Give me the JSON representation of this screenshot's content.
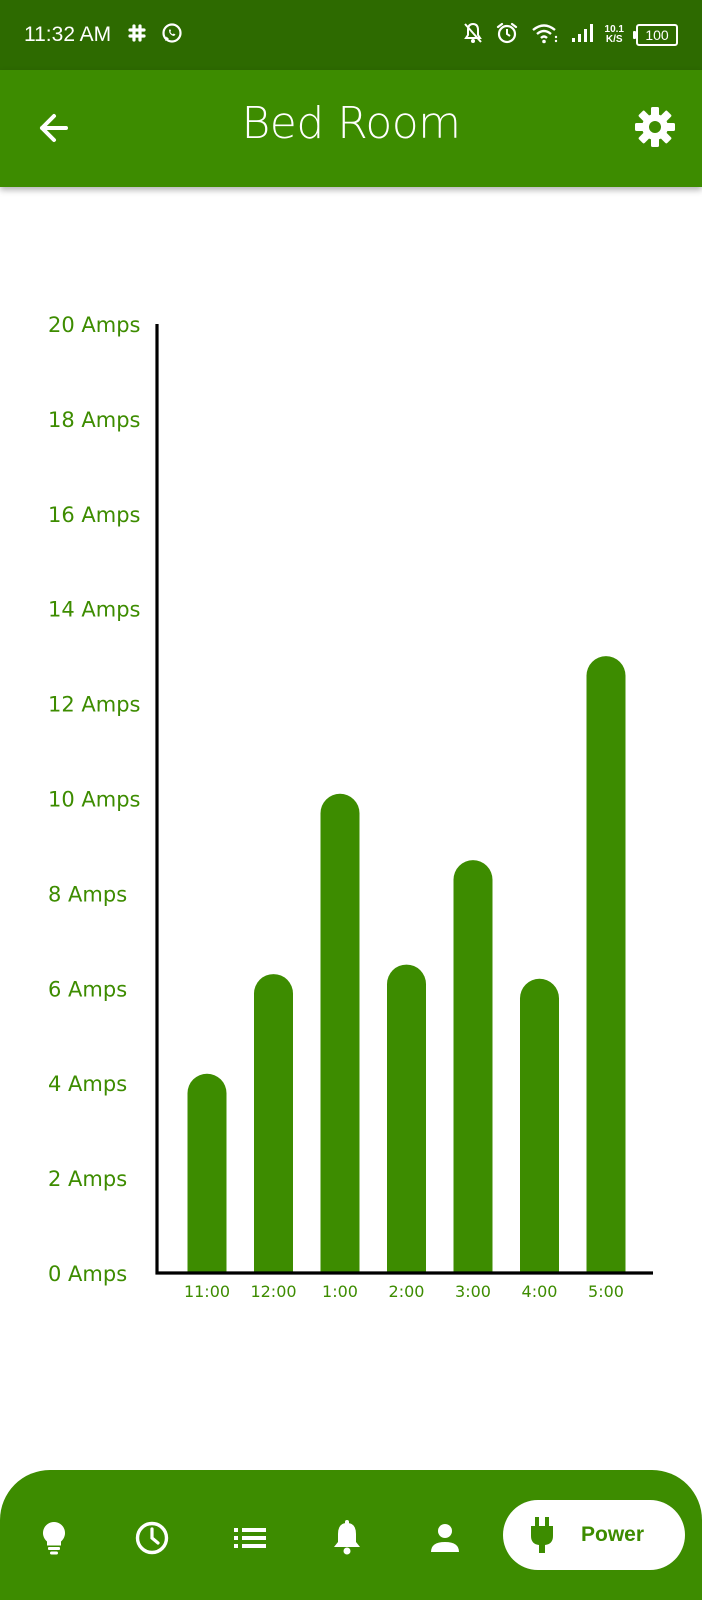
{
  "status_bar": {
    "time": "11:32 AM",
    "left_icons": [
      "slack-icon",
      "whatsapp-icon"
    ],
    "right_icons": [
      "notifications-off-icon",
      "alarm-icon",
      "wifi-icon",
      "signal-icon"
    ],
    "net_speed_value": "10.1",
    "net_speed_unit": "K/S",
    "battery": "100"
  },
  "app_bar": {
    "title": "Bed Room",
    "back_icon": "arrow-back-icon",
    "settings_icon": "gear-icon"
  },
  "colors": {
    "status_bar": "#2d6a00",
    "primary": "#3d8c00",
    "bar": "#3d8c00",
    "axis_text": "#3d8c00",
    "axis_line": "#000000"
  },
  "chart_data": {
    "type": "bar",
    "categories": [
      "11:00",
      "12:00",
      "1:00",
      "2:00",
      "3:00",
      "4:00",
      "5:00"
    ],
    "values": [
      4.2,
      6.3,
      10.1,
      6.5,
      8.7,
      6.2,
      13.0
    ],
    "y_ticks": [
      "0 Amps",
      "2 Amps",
      "4 Amps",
      "6 Amps",
      "8 Amps",
      "10 Amps",
      "12 Amps",
      "14 Amps",
      "16 Amps",
      "18 Amps",
      "20 Amps"
    ],
    "ylim": [
      0,
      20
    ],
    "grid": false,
    "bar_shape": "rounded-top"
  },
  "bottom_nav": {
    "items": [
      {
        "icon": "lightbulb-icon"
      },
      {
        "icon": "clock-icon"
      },
      {
        "icon": "list-icon"
      },
      {
        "icon": "bell-icon"
      },
      {
        "icon": "person-icon"
      }
    ],
    "active": {
      "icon": "plug-icon",
      "label": "Power"
    }
  }
}
